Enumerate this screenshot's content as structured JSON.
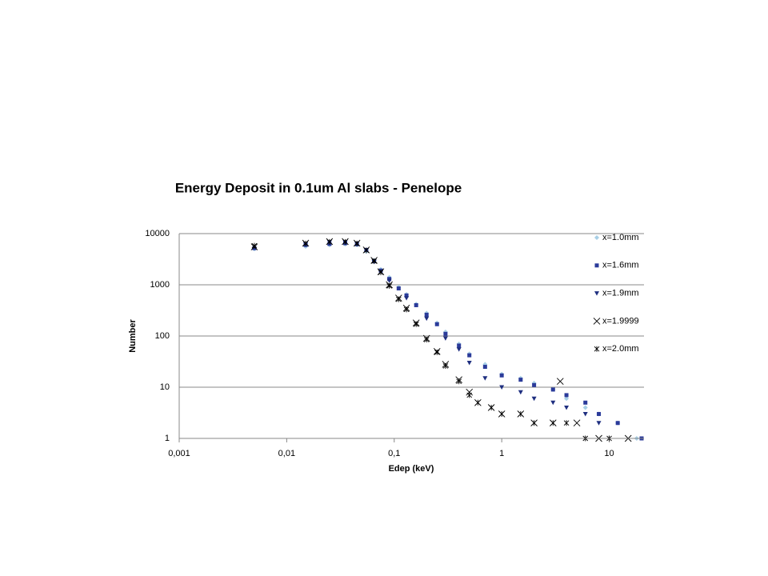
{
  "chart_data": {
    "type": "scatter",
    "title": "Energy Deposit in 0.1um Al slabs - Penelope",
    "xlabel": "Edep (keV)",
    "ylabel": "Number",
    "xscale": "log",
    "yscale": "log",
    "xlim": [
      0.001,
      20
    ],
    "ylim": [
      1,
      10000
    ],
    "xticks": [
      {
        "value": 0.001,
        "label": "0,001"
      },
      {
        "value": 0.01,
        "label": "0,01"
      },
      {
        "value": 0.1,
        "label": "0,1"
      },
      1,
      10
    ],
    "yticks": [
      1,
      10,
      100,
      1000,
      10000
    ],
    "grid": true,
    "legend": "right",
    "series": [
      {
        "name": "x=1.0mm",
        "color": "#a8cfe6",
        "marker": "diamond",
        "x": [
          0.005,
          0.015,
          0.025,
          0.035,
          0.045,
          0.055,
          0.065,
          0.075,
          0.09,
          0.11,
          0.13,
          0.16,
          0.2,
          0.25,
          0.3,
          0.4,
          0.5,
          0.7,
          1,
          1.5,
          2,
          3,
          4,
          6,
          8,
          12,
          18
        ],
        "values": [
          5000,
          5600,
          6000,
          6200,
          6000,
          4500,
          3000,
          2000,
          1400,
          900,
          650,
          420,
          280,
          180,
          120,
          70,
          45,
          28,
          18,
          15,
          12,
          9,
          6,
          4,
          3,
          2,
          1
        ]
      },
      {
        "name": "x=1.6mm",
        "color": "#2b3b9a",
        "marker": "square",
        "x": [
          0.005,
          0.015,
          0.025,
          0.035,
          0.045,
          0.055,
          0.065,
          0.075,
          0.09,
          0.11,
          0.13,
          0.16,
          0.2,
          0.25,
          0.3,
          0.4,
          0.5,
          0.7,
          1,
          1.5,
          2,
          3,
          4,
          6,
          8,
          12,
          20
        ],
        "values": [
          5200,
          6000,
          6300,
          6500,
          6200,
          4800,
          2900,
          1900,
          1300,
          850,
          620,
          400,
          260,
          170,
          110,
          65,
          42,
          25,
          17,
          14,
          11,
          9,
          7,
          5,
          3,
          2,
          1
        ]
      },
      {
        "name": "x=1.9mm",
        "color": "#1f2f80",
        "marker": "triangle",
        "x": [
          0.015,
          0.025,
          0.035,
          0.045,
          0.065,
          0.09,
          0.13,
          0.2,
          0.3,
          0.4,
          0.5,
          0.7,
          1,
          1.5,
          2,
          3,
          4,
          6,
          8
        ],
        "values": [
          6200,
          6800,
          6800,
          6400,
          2800,
          1200,
          550,
          220,
          90,
          55,
          30,
          15,
          10,
          8,
          6,
          5,
          4,
          3,
          2
        ]
      },
      {
        "name": "x=1.9999",
        "color": "#000000",
        "marker": "x",
        "x": [
          0.005,
          0.015,
          0.025,
          0.035,
          0.045,
          0.055,
          0.065,
          0.075,
          0.09,
          0.11,
          0.13,
          0.16,
          0.2,
          0.25,
          0.3,
          0.4,
          0.5,
          0.6,
          0.8,
          1,
          1.5,
          2,
          3,
          3.5,
          5,
          8,
          15
        ],
        "values": [
          5500,
          6500,
          7000,
          7000,
          6500,
          4800,
          3000,
          1800,
          1000,
          550,
          350,
          180,
          90,
          50,
          28,
          14,
          8,
          5,
          4,
          3,
          3,
          2,
          2,
          13,
          2,
          1,
          1
        ]
      },
      {
        "name": "x=2.0mm",
        "color": "#000000",
        "marker": "star",
        "x": [
          0.005,
          0.015,
          0.025,
          0.035,
          0.045,
          0.055,
          0.065,
          0.075,
          0.09,
          0.11,
          0.13,
          0.16,
          0.2,
          0.25,
          0.3,
          0.4,
          0.5,
          0.6,
          0.8,
          1,
          1.5,
          2,
          3,
          4,
          6,
          10
        ],
        "values": [
          5800,
          6400,
          6900,
          6900,
          6400,
          4700,
          2900,
          1750,
          950,
          520,
          330,
          170,
          85,
          48,
          26,
          13,
          7,
          5,
          4,
          3,
          3,
          2,
          2,
          2,
          1,
          1
        ]
      }
    ]
  }
}
